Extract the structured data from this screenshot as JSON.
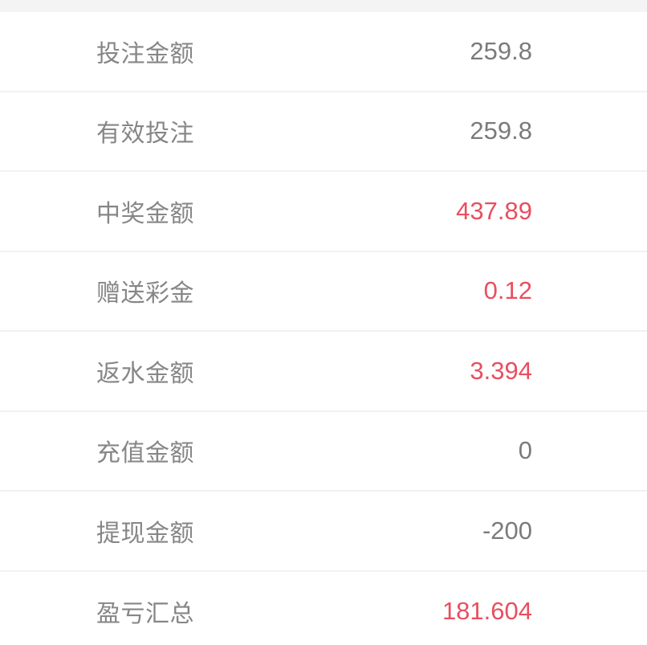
{
  "colors": {
    "accent": "#e84f5f",
    "label": "#868686",
    "value": "#7b7b7b",
    "divider": "#f1f1f1",
    "topbar": "#f4f4f4",
    "background": "#ffffff"
  },
  "rows": [
    {
      "label": "投注金额",
      "value": "259.8",
      "accent": false
    },
    {
      "label": "有效投注",
      "value": "259.8",
      "accent": false
    },
    {
      "label": "中奖金额",
      "value": "437.89",
      "accent": true
    },
    {
      "label": "赠送彩金",
      "value": "0.12",
      "accent": true
    },
    {
      "label": "返水金额",
      "value": "3.394",
      "accent": true
    },
    {
      "label": "充值金额",
      "value": "0",
      "accent": false
    },
    {
      "label": "提现金额",
      "value": "-200",
      "accent": false
    },
    {
      "label": "盈亏汇总",
      "value": "181.604",
      "accent": true
    }
  ]
}
